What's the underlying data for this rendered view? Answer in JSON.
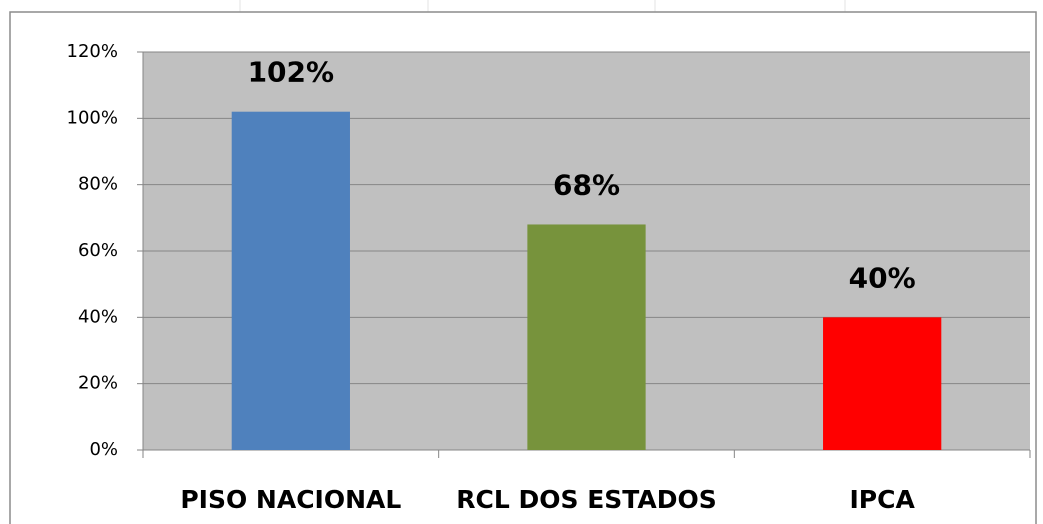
{
  "chart_data": {
    "type": "bar",
    "categories": [
      "PISO NACIONAL",
      "RCL DOS ESTADOS",
      "IPCA"
    ],
    "values": [
      102,
      68,
      40
    ],
    "value_labels": [
      "102%",
      "68%",
      "40%"
    ],
    "colors": [
      "#4f81bd",
      "#77933c",
      "#ff0000"
    ],
    "ylim": [
      0,
      120
    ],
    "yticks": [
      {
        "value": 0,
        "label": "0%"
      },
      {
        "value": 20,
        "label": "20%"
      },
      {
        "value": 40,
        "label": "40%"
      },
      {
        "value": 60,
        "label": "60%"
      },
      {
        "value": 80,
        "label": "80%"
      },
      {
        "value": 100,
        "label": "100%"
      },
      {
        "value": 120,
        "label": "120%"
      }
    ],
    "grid": true
  }
}
